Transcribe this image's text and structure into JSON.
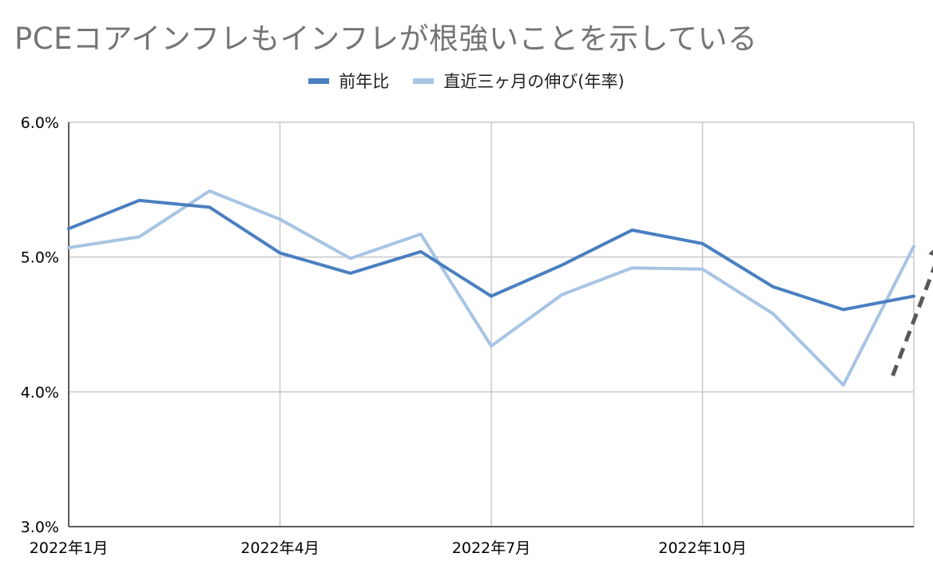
{
  "chart_data": {
    "type": "line",
    "title": "PCEコアインフレもインフレが根強いことを示している",
    "xlabel": "",
    "ylabel": "",
    "ylim": [
      3.0,
      6.0
    ],
    "yticks": [
      "3.0%",
      "4.0%",
      "5.0%",
      "6.0%"
    ],
    "ytick_values": [
      3.0,
      4.0,
      5.0,
      6.0
    ],
    "categories": [
      "2022-01",
      "2022-02",
      "2022-03",
      "2022-04",
      "2022-05",
      "2022-06",
      "2022-07",
      "2022-08",
      "2022-09",
      "2022-10",
      "2022-11",
      "2022-12",
      "2023-01"
    ],
    "xticks": [
      {
        "index": 0,
        "label": "2022年1月"
      },
      {
        "index": 3,
        "label": "2022年4月"
      },
      {
        "index": 6,
        "label": "2022年7月"
      },
      {
        "index": 9,
        "label": "2022年10月"
      }
    ],
    "grid": true,
    "legend_position": "top",
    "series": [
      {
        "name": "前年比",
        "color": "#4a7fc1",
        "values": [
          5.21,
          5.42,
          5.37,
          5.03,
          4.88,
          5.04,
          4.71,
          4.94,
          5.2,
          5.1,
          4.78,
          4.61,
          4.71
        ]
      },
      {
        "name": "直近三ヶ月の伸び(年率)",
        "color": "#a7c4e3",
        "values": [
          5.07,
          5.15,
          5.49,
          5.28,
          4.99,
          5.17,
          4.34,
          4.72,
          4.92,
          4.91,
          4.58,
          4.05,
          5.08
        ]
      }
    ],
    "annotation": {
      "type": "dashed-arrow",
      "color": "#595959",
      "from_index": 11.7,
      "from_value": 4.12,
      "to_index": 12.45,
      "to_value": 5.14
    }
  }
}
